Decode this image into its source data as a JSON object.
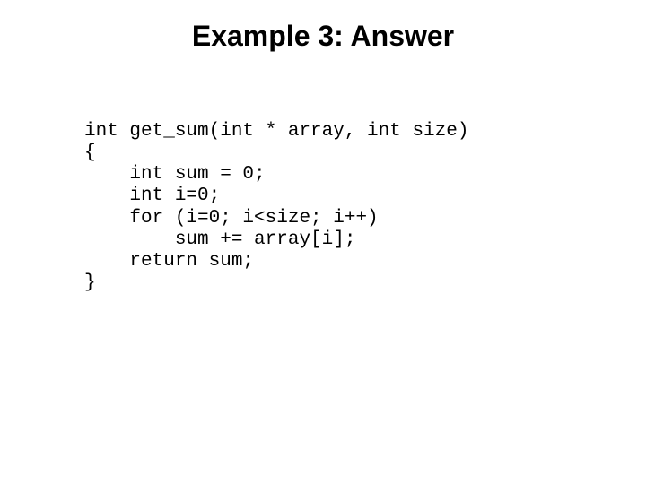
{
  "slide": {
    "title": "Example 3: Answer",
    "title_color": "#000000",
    "title_fontsize": 32,
    "title_fontweight": 700,
    "title_font": "Trebuchet MS",
    "background_color": "#ffffff",
    "code": {
      "font": "Courier New",
      "fontsize": 21,
      "color": "#000000",
      "lines": [
        "int get_sum(int * array, int size)",
        "{",
        "    int sum = 0;",
        "    int i=0;",
        "    for (i=0; i<size; i++)",
        "        sum += array[i];",
        "    return sum;",
        "}"
      ],
      "text": "int get_sum(int * array, int size)\n{\n    int sum = 0;\n    int i=0;\n    for (i=0; i<size; i++)\n        sum += array[i];\n    return sum;\n}"
    }
  }
}
